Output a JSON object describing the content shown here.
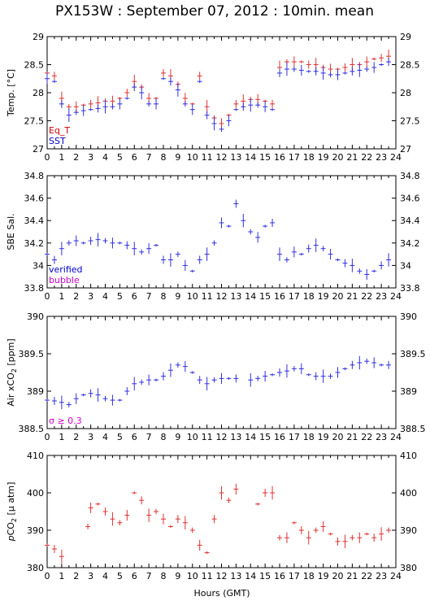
{
  "title": "PX153W : September 07, 2012 : 10min. mean",
  "xlabel": "Hours (GMT)",
  "chart_data": [
    {
      "type": "scatter",
      "ylabel": "Temp. [°C]",
      "xlim": [
        0,
        24
      ],
      "ylim": [
        27,
        29
      ],
      "yticks": [
        "27",
        "27.5",
        "28",
        "28.5",
        "29"
      ],
      "xticks": [
        "0",
        "1",
        "2",
        "3",
        "4",
        "5",
        "6",
        "7",
        "8",
        "9",
        "10",
        "11",
        "12",
        "13",
        "14",
        "15",
        "16",
        "17",
        "18",
        "19",
        "20",
        "21",
        "22",
        "23",
        "24"
      ],
      "legend": [
        "Eq_T",
        "SST"
      ],
      "legend_colors": [
        "#cc0000",
        "#0000cc"
      ],
      "series": [
        {
          "name": "Eq_T",
          "color": "#e03030",
          "x": [
            0,
            0.5,
            1,
            1.5,
            2,
            2.5,
            3,
            3.5,
            4,
            4.5,
            5,
            5.5,
            6,
            6.5,
            7,
            7.5,
            8,
            8.5,
            9,
            9.5,
            10,
            10.5,
            11,
            11.5,
            12,
            12.5,
            13,
            13.5,
            14,
            14.5,
            15,
            15.5,
            16,
            16.5,
            17,
            17.5,
            18,
            18.5,
            19,
            19.5,
            20,
            20.5,
            21,
            21.5,
            22,
            22.5,
            23,
            23.5
          ],
          "y": [
            28.35,
            28.3,
            27.9,
            27.75,
            27.75,
            27.78,
            27.8,
            27.82,
            27.85,
            27.85,
            27.9,
            28.0,
            28.2,
            28.1,
            27.9,
            27.9,
            28.35,
            28.3,
            28.15,
            27.9,
            27.8,
            28.3,
            27.75,
            27.55,
            27.45,
            27.6,
            27.8,
            27.85,
            27.88,
            27.88,
            27.85,
            27.8,
            28.45,
            28.55,
            28.55,
            28.55,
            28.5,
            28.5,
            28.45,
            28.42,
            28.42,
            28.45,
            28.5,
            28.5,
            28.55,
            28.6,
            28.62,
            28.65
          ]
        },
        {
          "name": "SST",
          "color": "#3030e0",
          "x": [
            0,
            0.5,
            1,
            1.5,
            2,
            2.5,
            3,
            3.5,
            4,
            4.5,
            5,
            5.5,
            6,
            6.5,
            7,
            7.5,
            8,
            8.5,
            9,
            9.5,
            10,
            10.5,
            11,
            11.5,
            12,
            12.5,
            13,
            13.5,
            14,
            14.5,
            15,
            15.5,
            16,
            16.5,
            17,
            17.5,
            18,
            18.5,
            19,
            19.5,
            20,
            20.5,
            21,
            21.5,
            22,
            22.5,
            23,
            23.5
          ],
          "y": [
            28.25,
            28.2,
            27.8,
            27.6,
            27.65,
            27.68,
            27.7,
            27.72,
            27.75,
            27.75,
            27.8,
            27.9,
            28.1,
            28.0,
            27.8,
            27.8,
            28.25,
            28.2,
            28.05,
            27.8,
            27.7,
            28.2,
            27.6,
            27.45,
            27.35,
            27.5,
            27.7,
            27.75,
            27.78,
            27.78,
            27.75,
            27.7,
            28.35,
            28.42,
            28.42,
            28.4,
            28.38,
            28.38,
            28.35,
            28.32,
            28.32,
            28.35,
            28.38,
            28.4,
            28.42,
            28.45,
            28.5,
            28.55
          ]
        }
      ]
    },
    {
      "type": "scatter",
      "ylabel": "SBE Sal.",
      "xlim": [
        0,
        24
      ],
      "ylim": [
        33.8,
        34.8
      ],
      "yticks": [
        "33.8",
        "34",
        "34.2",
        "34.4",
        "34.6",
        "34.8"
      ],
      "xticks": [
        "0",
        "1",
        "2",
        "3",
        "4",
        "5",
        "6",
        "7",
        "8",
        "9",
        "10",
        "11",
        "12",
        "13",
        "14",
        "15",
        "16",
        "17",
        "18",
        "19",
        "20",
        "21",
        "22",
        "23",
        "24"
      ],
      "legend": [
        "verified",
        "bubble"
      ],
      "legend_colors": [
        "#0000cc",
        "#cc00cc"
      ],
      "series": [
        {
          "name": "verified",
          "color": "#3030e0",
          "x": [
            0,
            0.5,
            1,
            1.5,
            2,
            2.5,
            3,
            3.5,
            4,
            4.5,
            5,
            5.5,
            6,
            6.5,
            7,
            7.5,
            8,
            8.5,
            9,
            9.5,
            10,
            10.5,
            11,
            11.5,
            12,
            12.5,
            13,
            13.5,
            14,
            14.5,
            15,
            15.5,
            16,
            16.5,
            17,
            17.5,
            18,
            18.5,
            19,
            19.5,
            20,
            20.5,
            21,
            21.5,
            22,
            22.5,
            23,
            23.5
          ],
          "y": [
            34.1,
            34.05,
            34.15,
            34.2,
            34.22,
            34.2,
            34.22,
            34.23,
            34.22,
            34.2,
            34.2,
            34.18,
            34.15,
            34.12,
            34.15,
            34.18,
            34.05,
            34.05,
            34.1,
            34.0,
            33.95,
            34.05,
            34.1,
            34.2,
            34.38,
            34.35,
            34.55,
            34.4,
            34.3,
            34.25,
            34.35,
            34.38,
            34.1,
            34.05,
            34.12,
            34.1,
            34.15,
            34.18,
            34.15,
            34.1,
            34.05,
            34.02,
            34.0,
            33.95,
            33.92,
            33.95,
            34.0,
            34.05
          ]
        }
      ]
    },
    {
      "type": "scatter",
      "ylabel": "Air xCO2 [ppm]",
      "xlim": [
        0,
        24
      ],
      "ylim": [
        388.5,
        390
      ],
      "yticks": [
        "388.5",
        "389",
        "389.5",
        "390"
      ],
      "xticks": [
        "0",
        "1",
        "2",
        "3",
        "4",
        "5",
        "6",
        "7",
        "8",
        "9",
        "10",
        "11",
        "12",
        "13",
        "14",
        "15",
        "16",
        "17",
        "18",
        "19",
        "20",
        "21",
        "22",
        "23",
        "24"
      ],
      "legend": [
        "σ ≥ 0.3"
      ],
      "legend_colors": [
        "#cc00cc"
      ],
      "series": [
        {
          "name": "",
          "color": "#3030e0",
          "x": [
            0,
            0.5,
            1,
            1.5,
            2,
            2.5,
            3,
            3.5,
            4,
            4.5,
            5,
            5.5,
            6,
            6.5,
            7,
            7.5,
            8,
            8.5,
            9,
            9.5,
            10,
            10.5,
            11,
            11.5,
            12,
            12.5,
            13,
            14,
            14.5,
            15,
            15.5,
            16,
            16.5,
            17,
            17.5,
            18,
            18.5,
            19,
            19.5,
            20,
            20.5,
            21,
            21.5,
            22,
            22.5,
            23,
            23.5
          ],
          "y": [
            388.88,
            388.87,
            388.85,
            388.82,
            388.9,
            388.95,
            388.97,
            388.95,
            388.9,
            388.88,
            388.88,
            389.0,
            389.1,
            389.12,
            389.15,
            389.15,
            389.2,
            389.28,
            389.35,
            389.33,
            389.25,
            389.15,
            389.1,
            389.15,
            389.17,
            389.17,
            389.17,
            389.15,
            389.17,
            389.2,
            389.22,
            389.25,
            389.27,
            389.3,
            389.3,
            389.22,
            389.2,
            389.2,
            389.2,
            389.25,
            389.3,
            389.35,
            389.38,
            389.4,
            389.38,
            389.35,
            389.35
          ]
        }
      ]
    },
    {
      "type": "scatter",
      "ylabel": "pCO2 [µ atm]",
      "xlim": [
        0,
        24
      ],
      "ylim": [
        380,
        410
      ],
      "yticks": [
        "380",
        "390",
        "400",
        "410"
      ],
      "xticks": [
        "0",
        "1",
        "2",
        "3",
        "4",
        "5",
        "6",
        "7",
        "8",
        "9",
        "10",
        "11",
        "12",
        "13",
        "14",
        "15",
        "16",
        "17",
        "18",
        "19",
        "20",
        "21",
        "22",
        "23",
        "24"
      ],
      "series": [
        {
          "name": "",
          "color": "#e03030",
          "x": [
            0,
            0.5,
            1,
            2.8,
            3,
            3.5,
            4,
            4.5,
            5,
            5.5,
            6,
            6.5,
            7,
            7.5,
            8,
            8.5,
            9,
            9.5,
            10,
            10.5,
            11,
            11.5,
            12,
            12.5,
            13,
            14.5,
            15,
            15.5,
            16,
            16.5,
            17,
            17.5,
            18,
            18.5,
            19,
            19.5,
            20,
            20.5,
            21,
            21.5,
            22,
            22.5,
            23,
            23.5
          ],
          "y": [
            386,
            385,
            383,
            391,
            396,
            397,
            395,
            393,
            392,
            394,
            400,
            398,
            394,
            395,
            393,
            391,
            393,
            392,
            390,
            386,
            384,
            393,
            400,
            398,
            401,
            397,
            400,
            400,
            388,
            388,
            392,
            390,
            388,
            390,
            391,
            389,
            387,
            387,
            388,
            388,
            389,
            388,
            389,
            390
          ]
        }
      ]
    }
  ]
}
